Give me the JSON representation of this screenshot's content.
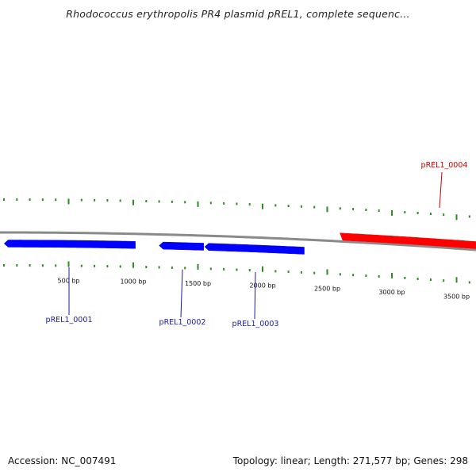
{
  "title": "Rhodococcus erythropolis PR4 plasmid pREL1, complete sequenc...",
  "footer": {
    "accession": "Accession: NC_007491",
    "summary": "Topology: linear; Length: 271,577 bp; Genes: 298"
  },
  "colors": {
    "forward_gene": "#ff0000",
    "reverse_gene": "#0000ff",
    "tick": "#2e8b22",
    "backbone": "#8a8a8a",
    "reverse_label": "#1a1aaa",
    "forward_label": "#cc0000"
  },
  "axis": {
    "labels": [
      {
        "bp": 500,
        "text": "500 bp"
      },
      {
        "bp": 1000,
        "text": "1000 bp"
      },
      {
        "bp": 1500,
        "text": "1500 bp"
      },
      {
        "bp": 2000,
        "text": "2000 bp"
      },
      {
        "bp": 2500,
        "text": "2500 bp"
      },
      {
        "bp": 3000,
        "text": "3000 bp"
      },
      {
        "bp": 3500,
        "text": "3500 bp"
      }
    ]
  },
  "genes": [
    {
      "id": "pREL1_0001",
      "strand": "reverse",
      "start": 1,
      "end": 1016
    },
    {
      "id": "pREL1_0002",
      "strand": "reverse",
      "start": 1200,
      "end": 1544
    },
    {
      "id": "pREL1_0003",
      "strand": "reverse",
      "start": 1552,
      "end": 2322
    },
    {
      "id": "pREL1_0004",
      "strand": "forward",
      "start": 2598,
      "end": 3650
    }
  ]
}
